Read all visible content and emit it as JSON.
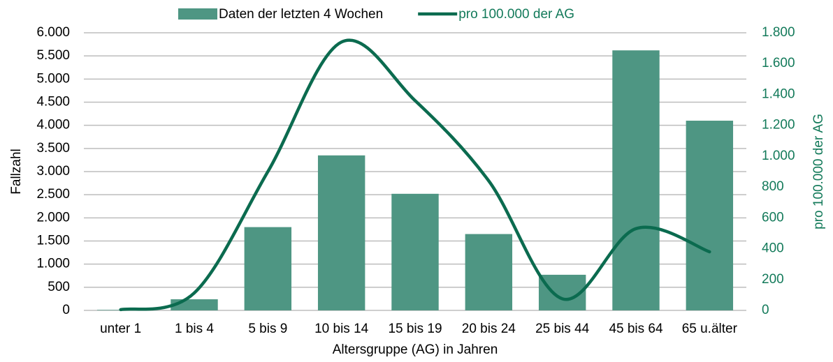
{
  "chart_data": {
    "type": "bar_line",
    "x_label": "Altersgruppe (AG) in Jahren",
    "y_label": "Fallzahl",
    "y2_label": "pro 100.000 der AG",
    "legend": "top",
    "grid": true,
    "categories": [
      "unter 1",
      "1 bis 4",
      "5 bis 9",
      "10 bis 14",
      "15 bis 19",
      "20 bis 24",
      "25 bis 44",
      "45 bis 64",
      "65 u.älter"
    ],
    "series": [
      {
        "name": "Daten der letzten 4 Wochen",
        "type": "bar",
        "color": "#4e9683",
        "values": [
          10,
          240,
          1800,
          3350,
          2520,
          1650,
          770,
          5620,
          4100
        ]
      },
      {
        "name": "pro 100.000 der AG",
        "type": "line",
        "axis": "y2",
        "color": "#0b6b4f",
        "values": [
          5,
          113,
          900,
          1740,
          1360,
          840,
          75,
          530,
          380
        ]
      }
    ],
    "ylim": [
      0,
      6000
    ],
    "yticks": [
      0,
      500,
      {
        "value": 1000,
        "label": "1.000"
      },
      {
        "value": 1500,
        "label": "1.500"
      },
      {
        "value": 2000,
        "label": "2.000"
      },
      {
        "value": 2500,
        "label": "2.500"
      },
      {
        "value": 3000,
        "label": "3.000"
      },
      {
        "value": 3500,
        "label": "3.500"
      },
      {
        "value": 4000,
        "label": "4.000"
      },
      {
        "value": 4500,
        "label": "4.500"
      },
      {
        "value": 5000,
        "label": "5.000"
      },
      {
        "value": 5500,
        "label": "5.500"
      },
      {
        "value": 6000,
        "label": "6.000"
      }
    ],
    "y2lim": [
      0,
      1800
    ],
    "y2ticks": [
      0,
      200,
      400,
      600,
      800,
      {
        "value": 1000,
        "label": "1.000"
      },
      {
        "value": 1200,
        "label": "1.200"
      },
      {
        "value": 1400,
        "label": "1.400"
      },
      {
        "value": 1600,
        "label": "1.600"
      },
      {
        "value": 1800,
        "label": "1.800"
      }
    ]
  }
}
